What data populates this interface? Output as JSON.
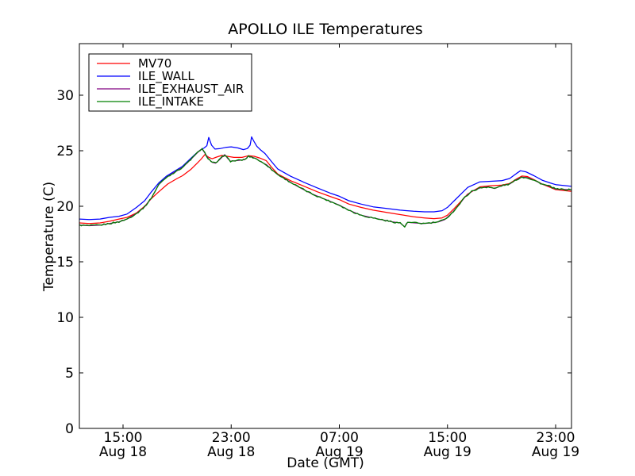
{
  "chart_data": {
    "type": "line",
    "title": "APOLLO ILE Temperatures",
    "xlabel": "Date (GMT)",
    "ylabel": "Temperature (C)",
    "grid": false,
    "background": "#ffffff",
    "axis_color": "#000000",
    "x_axis": {
      "unit": "hours since Aug 18 00:00 GMT",
      "lim": [
        11.77,
        48.18
      ],
      "ticks": [
        {
          "t": 15,
          "time": "15:00",
          "date": "Aug 18"
        },
        {
          "t": 23,
          "time": "23:00",
          "date": "Aug 18"
        },
        {
          "t": 31,
          "time": "07:00",
          "date": "Aug 19"
        },
        {
          "t": 39,
          "time": "15:00",
          "date": "Aug 19"
        },
        {
          "t": 47,
          "time": "23:00",
          "date": "Aug 19"
        }
      ]
    },
    "y_axis": {
      "lim": [
        0,
        34.64
      ],
      "ticks": [
        0,
        5,
        10,
        15,
        20,
        25,
        30
      ]
    },
    "legend": {
      "position": "upper left",
      "entries": [
        "MV70",
        "ILE_WALL",
        "ILE_EXHAUST_AIR",
        "ILE_INTAKE"
      ]
    },
    "series": [
      {
        "name": "MV70",
        "color": "#ff0000",
        "points": [
          [
            11.77,
            18.5
          ],
          [
            12.5,
            18.45
          ],
          [
            13.3,
            18.5
          ],
          [
            14.0,
            18.65
          ],
          [
            14.7,
            18.85
          ],
          [
            15.3,
            19.0
          ],
          [
            16.0,
            19.4
          ],
          [
            16.6,
            20.0
          ],
          [
            17.1,
            20.7
          ],
          [
            17.64,
            21.3
          ],
          [
            18.3,
            22.0
          ],
          [
            19.0,
            22.5
          ],
          [
            19.4,
            22.75
          ],
          [
            20.0,
            23.3
          ],
          [
            20.5,
            23.9
          ],
          [
            20.78,
            24.25
          ],
          [
            21.05,
            24.65
          ],
          [
            21.35,
            24.4
          ],
          [
            21.6,
            24.28
          ],
          [
            21.9,
            24.42
          ],
          [
            22.3,
            24.58
          ],
          [
            22.7,
            24.5
          ],
          [
            23.2,
            24.4
          ],
          [
            23.8,
            24.4
          ],
          [
            24.28,
            24.55
          ],
          [
            24.7,
            24.5
          ],
          [
            25.1,
            24.35
          ],
          [
            25.6,
            24.1
          ],
          [
            26.0,
            23.5
          ],
          [
            26.45,
            22.9
          ],
          [
            27.4,
            22.3
          ],
          [
            28.4,
            21.8
          ],
          [
            29.38,
            21.3
          ],
          [
            30.4,
            20.85
          ],
          [
            31.0,
            20.6
          ],
          [
            31.7,
            20.2
          ],
          [
            32.6,
            19.9
          ],
          [
            33.5,
            19.65
          ],
          [
            34.5,
            19.45
          ],
          [
            35.5,
            19.25
          ],
          [
            36.5,
            19.05
          ],
          [
            37.3,
            18.95
          ],
          [
            38.0,
            18.88
          ],
          [
            38.6,
            18.95
          ],
          [
            39.0,
            19.2
          ],
          [
            39.5,
            19.8
          ],
          [
            40.0,
            20.45
          ],
          [
            40.5,
            21.1
          ],
          [
            41.4,
            21.75
          ],
          [
            42.2,
            21.85
          ],
          [
            43.0,
            21.9
          ],
          [
            43.6,
            22.05
          ],
          [
            44.1,
            22.45
          ],
          [
            44.5,
            22.72
          ],
          [
            44.9,
            22.68
          ],
          [
            45.4,
            22.4
          ],
          [
            46.0,
            22.0
          ],
          [
            46.6,
            21.7
          ],
          [
            47.0,
            21.5
          ],
          [
            48.12,
            21.35
          ]
        ]
      },
      {
        "name": "ILE_WALL",
        "color": "#0000ff",
        "points": [
          [
            11.77,
            18.85
          ],
          [
            12.5,
            18.8
          ],
          [
            13.3,
            18.85
          ],
          [
            14.0,
            19.0
          ],
          [
            14.7,
            19.1
          ],
          [
            15.3,
            19.3
          ],
          [
            16.0,
            19.9
          ],
          [
            16.6,
            20.5
          ],
          [
            17.1,
            21.3
          ],
          [
            17.64,
            22.1
          ],
          [
            18.2,
            22.7
          ],
          [
            19.0,
            23.3
          ],
          [
            19.4,
            23.6
          ],
          [
            20.0,
            24.3
          ],
          [
            20.4,
            24.75
          ],
          [
            20.7,
            25.05
          ],
          [
            21.0,
            25.25
          ],
          [
            21.2,
            25.45
          ],
          [
            21.34,
            26.2
          ],
          [
            21.55,
            25.5
          ],
          [
            21.8,
            25.15
          ],
          [
            22.2,
            25.2
          ],
          [
            22.6,
            25.3
          ],
          [
            23.0,
            25.35
          ],
          [
            23.5,
            25.25
          ],
          [
            23.9,
            25.1
          ],
          [
            24.2,
            25.2
          ],
          [
            24.4,
            25.5
          ],
          [
            24.51,
            26.25
          ],
          [
            24.68,
            25.85
          ],
          [
            24.9,
            25.4
          ],
          [
            25.15,
            25.1
          ],
          [
            25.5,
            24.75
          ],
          [
            26.0,
            24.0
          ],
          [
            26.45,
            23.35
          ],
          [
            27.4,
            22.7
          ],
          [
            28.4,
            22.15
          ],
          [
            29.38,
            21.65
          ],
          [
            30.4,
            21.15
          ],
          [
            31.0,
            20.9
          ],
          [
            31.7,
            20.5
          ],
          [
            32.6,
            20.2
          ],
          [
            33.5,
            19.95
          ],
          [
            34.5,
            19.8
          ],
          [
            35.5,
            19.65
          ],
          [
            36.5,
            19.55
          ],
          [
            37.3,
            19.5
          ],
          [
            38.0,
            19.5
          ],
          [
            38.6,
            19.6
          ],
          [
            39.0,
            19.9
          ],
          [
            39.5,
            20.5
          ],
          [
            40.0,
            21.1
          ],
          [
            40.5,
            21.7
          ],
          [
            41.4,
            22.2
          ],
          [
            42.2,
            22.25
          ],
          [
            43.0,
            22.3
          ],
          [
            43.6,
            22.5
          ],
          [
            44.1,
            22.95
          ],
          [
            44.4,
            23.2
          ],
          [
            44.8,
            23.1
          ],
          [
            45.4,
            22.75
          ],
          [
            46.0,
            22.35
          ],
          [
            46.6,
            22.1
          ],
          [
            47.0,
            21.95
          ],
          [
            48.12,
            21.8
          ]
        ]
      },
      {
        "name": "ILE_EXHAUST_AIR",
        "color": "#800080",
        "points": [
          [
            11.77,
            18.3
          ],
          [
            12.5,
            18.25
          ],
          [
            13.3,
            18.3
          ],
          [
            14.0,
            18.45
          ],
          [
            14.7,
            18.6
          ],
          [
            15.3,
            18.85
          ],
          [
            16.0,
            19.35
          ],
          [
            16.6,
            19.95
          ],
          [
            17.1,
            20.75
          ],
          [
            17.64,
            21.95
          ],
          [
            18.2,
            22.6
          ],
          [
            19.0,
            23.2
          ],
          [
            19.4,
            23.5
          ],
          [
            20.0,
            24.2
          ],
          [
            20.4,
            24.7
          ],
          [
            20.7,
            25.05
          ],
          [
            20.85,
            25.15
          ],
          [
            21.05,
            24.8
          ],
          [
            21.3,
            24.3
          ],
          [
            21.6,
            23.95
          ],
          [
            21.85,
            23.88
          ],
          [
            22.1,
            24.15
          ],
          [
            22.35,
            24.45
          ],
          [
            22.52,
            24.65
          ],
          [
            22.75,
            24.3
          ],
          [
            22.95,
            24.05
          ],
          [
            23.3,
            24.1
          ],
          [
            23.7,
            24.15
          ],
          [
            24.0,
            24.2
          ],
          [
            24.28,
            24.5
          ],
          [
            24.6,
            24.4
          ],
          [
            24.9,
            24.25
          ],
          [
            25.2,
            24.0
          ],
          [
            25.6,
            23.75
          ],
          [
            26.0,
            23.3
          ],
          [
            26.45,
            22.85
          ],
          [
            27.0,
            22.45
          ],
          [
            27.6,
            22.0
          ],
          [
            28.2,
            21.6
          ],
          [
            29.0,
            21.1
          ],
          [
            29.6,
            20.8
          ],
          [
            30.2,
            20.5
          ],
          [
            31.0,
            20.1
          ],
          [
            31.7,
            19.65
          ],
          [
            32.6,
            19.2
          ],
          [
            33.5,
            18.95
          ],
          [
            34.3,
            18.75
          ],
          [
            34.9,
            18.6
          ],
          [
            35.5,
            18.5
          ],
          [
            35.84,
            18.15
          ],
          [
            36.05,
            18.55
          ],
          [
            36.6,
            18.5
          ],
          [
            37.2,
            18.45
          ],
          [
            37.8,
            18.5
          ],
          [
            38.35,
            18.6
          ],
          [
            38.8,
            18.8
          ],
          [
            39.3,
            19.35
          ],
          [
            39.8,
            20.05
          ],
          [
            40.3,
            20.85
          ],
          [
            40.8,
            21.35
          ],
          [
            41.4,
            21.65
          ],
          [
            42.0,
            21.75
          ],
          [
            42.5,
            21.6
          ],
          [
            43.0,
            21.85
          ],
          [
            43.6,
            22.0
          ],
          [
            44.1,
            22.4
          ],
          [
            44.5,
            22.62
          ],
          [
            44.9,
            22.58
          ],
          [
            45.4,
            22.35
          ],
          [
            46.0,
            22.0
          ],
          [
            46.6,
            21.78
          ],
          [
            47.0,
            21.55
          ],
          [
            48.12,
            21.48
          ]
        ]
      },
      {
        "name": "ILE_INTAKE",
        "color": "#008000",
        "jitter": 0.07,
        "points": [
          [
            11.77,
            18.3
          ],
          [
            12.5,
            18.25
          ],
          [
            13.3,
            18.3
          ],
          [
            14.0,
            18.45
          ],
          [
            14.7,
            18.6
          ],
          [
            15.3,
            18.85
          ],
          [
            16.0,
            19.35
          ],
          [
            16.6,
            19.95
          ],
          [
            17.1,
            20.75
          ],
          [
            17.64,
            21.95
          ],
          [
            18.2,
            22.6
          ],
          [
            19.0,
            23.2
          ],
          [
            19.4,
            23.5
          ],
          [
            20.0,
            24.2
          ],
          [
            20.4,
            24.7
          ],
          [
            20.7,
            25.05
          ],
          [
            20.85,
            25.15
          ],
          [
            21.05,
            24.8
          ],
          [
            21.3,
            24.3
          ],
          [
            21.6,
            23.95
          ],
          [
            21.85,
            23.88
          ],
          [
            22.1,
            24.15
          ],
          [
            22.35,
            24.45
          ],
          [
            22.52,
            24.65
          ],
          [
            22.75,
            24.3
          ],
          [
            22.95,
            24.05
          ],
          [
            23.3,
            24.1
          ],
          [
            23.7,
            24.15
          ],
          [
            24.0,
            24.2
          ],
          [
            24.28,
            24.5
          ],
          [
            24.6,
            24.4
          ],
          [
            24.9,
            24.25
          ],
          [
            25.2,
            24.0
          ],
          [
            25.6,
            23.75
          ],
          [
            26.0,
            23.3
          ],
          [
            26.45,
            22.85
          ],
          [
            27.0,
            22.45
          ],
          [
            27.6,
            22.0
          ],
          [
            28.2,
            21.6
          ],
          [
            29.0,
            21.1
          ],
          [
            29.6,
            20.8
          ],
          [
            30.2,
            20.5
          ],
          [
            31.0,
            20.1
          ],
          [
            31.7,
            19.65
          ],
          [
            32.6,
            19.2
          ],
          [
            33.5,
            18.95
          ],
          [
            34.3,
            18.75
          ],
          [
            34.9,
            18.6
          ],
          [
            35.5,
            18.5
          ],
          [
            35.84,
            18.15
          ],
          [
            36.05,
            18.55
          ],
          [
            36.6,
            18.5
          ],
          [
            37.2,
            18.45
          ],
          [
            37.8,
            18.5
          ],
          [
            38.35,
            18.6
          ],
          [
            38.8,
            18.8
          ],
          [
            39.3,
            19.35
          ],
          [
            39.8,
            20.05
          ],
          [
            40.3,
            20.85
          ],
          [
            40.8,
            21.35
          ],
          [
            41.4,
            21.65
          ],
          [
            42.0,
            21.75
          ],
          [
            42.5,
            21.6
          ],
          [
            43.0,
            21.85
          ],
          [
            43.6,
            22.0
          ],
          [
            44.1,
            22.4
          ],
          [
            44.5,
            22.62
          ],
          [
            44.9,
            22.58
          ],
          [
            45.4,
            22.35
          ],
          [
            46.0,
            22.0
          ],
          [
            46.6,
            21.78
          ],
          [
            47.0,
            21.55
          ],
          [
            48.12,
            21.48
          ]
        ]
      }
    ]
  }
}
